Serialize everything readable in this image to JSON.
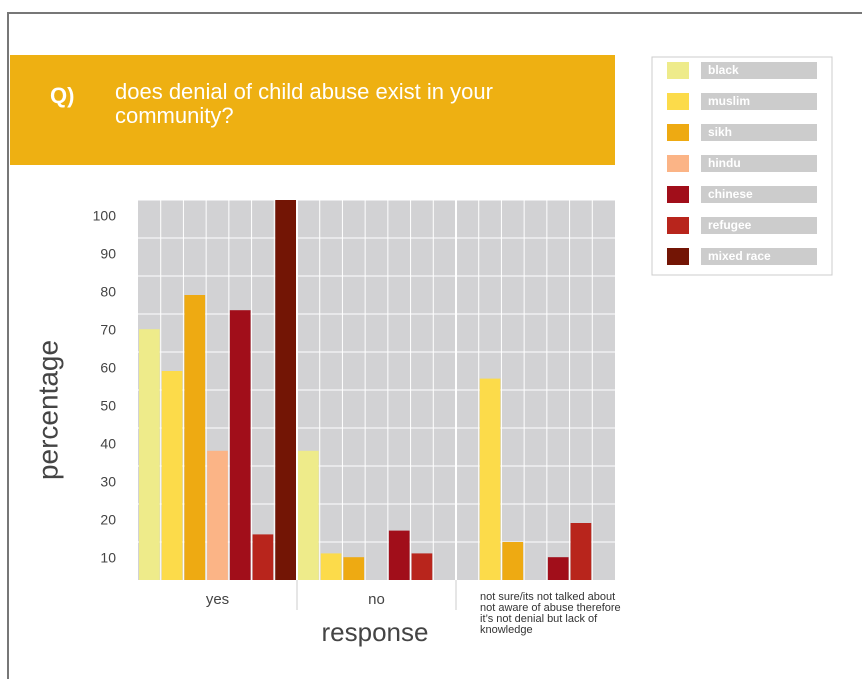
{
  "chart_data": {
    "type": "bar",
    "question_label": "Q)",
    "title": "does denial of child abuse exist in your community?",
    "ylabel": "percentage",
    "xlabel": "response",
    "categories": [
      "yes",
      "no",
      "not sure/its not talked about not aware of abuse therefore it’s not denial but lack of knowledge"
    ],
    "series": [
      {
        "name": "black",
        "color": "#eeeb8a",
        "values": [
          66,
          34,
          0
        ]
      },
      {
        "name": "muslim",
        "color": "#fcdb4a",
        "values": [
          55,
          7,
          53
        ]
      },
      {
        "name": "sikh",
        "color": "#eeaa12",
        "values": [
          75,
          6,
          10
        ]
      },
      {
        "name": "hindu",
        "color": "#fbb486",
        "values": [
          34,
          0,
          0
        ]
      },
      {
        "name": "chinese",
        "color": "#a10e1a",
        "values": [
          71,
          13,
          6
        ]
      },
      {
        "name": "refugee",
        "color": "#b8251c",
        "values": [
          12,
          7,
          15
        ]
      },
      {
        "name": "mixed race",
        "color": "#731505",
        "values": [
          100,
          0,
          0
        ]
      }
    ],
    "ylim": [
      0,
      100
    ],
    "yticks": [
      10,
      20,
      30,
      40,
      50,
      60,
      70,
      80,
      90,
      100
    ],
    "grid": true,
    "legend": "top-right"
  }
}
